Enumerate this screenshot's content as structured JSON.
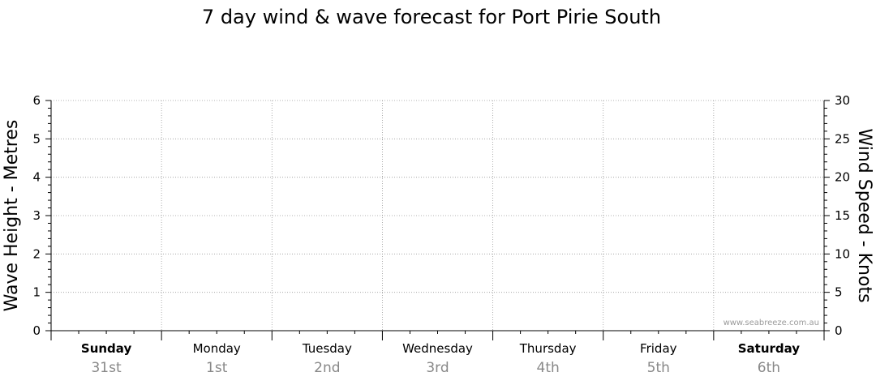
{
  "chart_data": {
    "type": "line",
    "title": "7 day wind & wave forecast for Port Pirie South",
    "ylabel_left": "Wave Height - Metres",
    "ylabel_right": "Wind Speed - Knots",
    "ylim_left": [
      0,
      6
    ],
    "ylim_right": [
      0,
      30
    ],
    "left_ticks": [
      0,
      1,
      2,
      3,
      4,
      5,
      6
    ],
    "right_ticks": [
      0,
      5,
      10,
      15,
      20,
      25,
      30
    ],
    "grid": true,
    "days": [
      {
        "name": "Sunday",
        "date": "31st",
        "bold": true
      },
      {
        "name": "Monday",
        "date": "1st",
        "bold": false
      },
      {
        "name": "Tuesday",
        "date": "2nd",
        "bold": false
      },
      {
        "name": "Wednesday",
        "date": "3rd",
        "bold": false
      },
      {
        "name": "Thursday",
        "date": "4th",
        "bold": false
      },
      {
        "name": "Friday",
        "date": "5th",
        "bold": false
      },
      {
        "name": "Saturday",
        "date": "6th",
        "bold": true
      }
    ],
    "series": []
  },
  "watermark": "www.seabreeze.com.au"
}
